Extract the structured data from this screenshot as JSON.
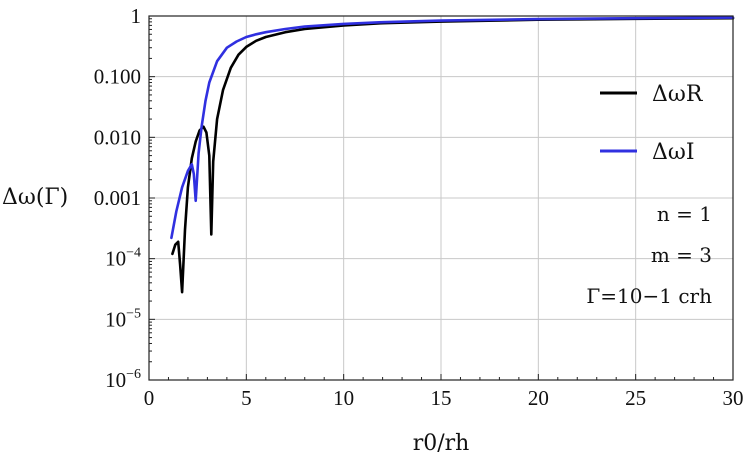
{
  "chart_data": {
    "type": "line",
    "xlabel": "r0/rh",
    "ylabel": "Δω(Γ)",
    "xlim": [
      0,
      30
    ],
    "ylim": [
      1e-06,
      1
    ],
    "yscale": "log",
    "grid": true,
    "legend_position": "right",
    "x_ticks": [
      "0",
      "5",
      "10",
      "15",
      "20",
      "25",
      "30"
    ],
    "y_ticks": [
      "10−6",
      "10−5",
      "10−4",
      "0.001",
      "0.010",
      "0.100",
      "1"
    ],
    "series": [
      {
        "name": "ΔωR",
        "color": "#000000",
        "x": [
          1.2,
          1.35,
          1.5,
          1.6,
          1.7,
          1.85,
          2.0,
          2.2,
          2.4,
          2.6,
          2.8,
          2.95,
          3.1,
          3.2,
          3.3,
          3.5,
          3.8,
          4.2,
          4.6,
          5.0,
          5.5,
          6,
          7,
          8,
          10,
          12,
          15,
          20,
          25,
          30
        ],
        "y": [
          0.00012,
          0.00017,
          0.00019,
          8e-05,
          2.8e-05,
          0.0003,
          0.0015,
          0.0045,
          0.0085,
          0.013,
          0.015,
          0.012,
          0.005,
          0.00025,
          0.004,
          0.02,
          0.06,
          0.14,
          0.23,
          0.31,
          0.39,
          0.45,
          0.54,
          0.61,
          0.7,
          0.76,
          0.81,
          0.87,
          0.9,
          0.92
        ]
      },
      {
        "name": "ΔωI",
        "color": "#3030e0",
        "x": [
          1.15,
          1.4,
          1.7,
          2.0,
          2.2,
          2.3,
          2.4,
          2.55,
          2.7,
          2.9,
          3.1,
          3.5,
          4.0,
          4.5,
          5.0,
          5.5,
          6,
          7,
          8,
          10,
          12,
          15,
          20,
          25,
          30
        ],
        "y": [
          0.00022,
          0.0006,
          0.0015,
          0.0028,
          0.0036,
          0.0025,
          0.0009,
          0.0055,
          0.015,
          0.04,
          0.08,
          0.18,
          0.3,
          0.38,
          0.45,
          0.5,
          0.54,
          0.61,
          0.67,
          0.74,
          0.79,
          0.84,
          0.89,
          0.92,
          0.94
        ]
      }
    ],
    "annotations": [
      "n = 1",
      "m = 3",
      "Γ=10−1 crh"
    ]
  }
}
